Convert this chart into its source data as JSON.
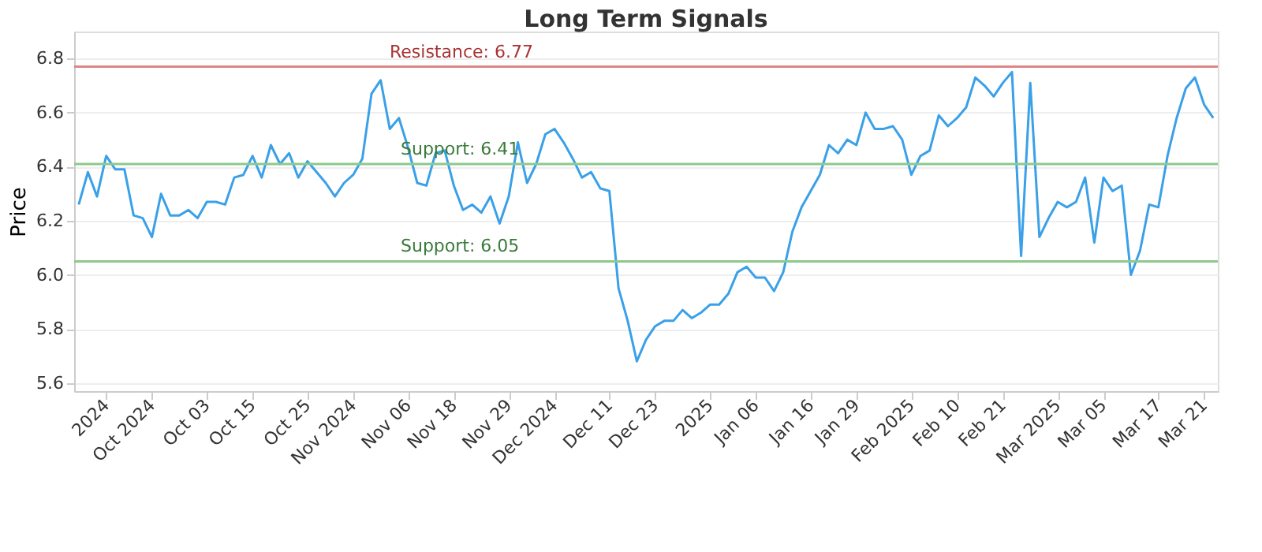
{
  "chart_data": {
    "type": "line",
    "title": "Long Term Signals",
    "ylabel": "Price",
    "categories": [
      null,
      null,
      null,
      "2024",
      null,
      null,
      null,
      null,
      "Oct 2024",
      null,
      null,
      null,
      null,
      null,
      "Oct 03",
      null,
      null,
      null,
      null,
      "Oct 15",
      null,
      null,
      null,
      null,
      null,
      "Oct 25",
      null,
      null,
      null,
      null,
      "Nov 2024",
      null,
      null,
      null,
      null,
      null,
      "Nov 06",
      null,
      null,
      null,
      null,
      "Nov 18",
      null,
      null,
      null,
      null,
      null,
      "Nov 29",
      null,
      null,
      null,
      null,
      "Dec 2024",
      null,
      null,
      null,
      null,
      null,
      "Dec 11",
      null,
      null,
      null,
      null,
      "Dec 23",
      null,
      null,
      null,
      null,
      null,
      "2025",
      null,
      null,
      null,
      null,
      "Jan 06",
      null,
      null,
      null,
      null,
      null,
      "Jan 16",
      null,
      null,
      null,
      null,
      "Jan 29",
      null,
      null,
      null,
      null,
      null,
      "Feb 2025",
      null,
      null,
      null,
      null,
      "Feb 10",
      null,
      null,
      null,
      null,
      "Feb 21",
      null,
      null,
      null,
      null,
      null,
      "Mar 2025",
      null,
      null,
      null,
      null,
      "Mar 05",
      null,
      null,
      null,
      null,
      null,
      "Mar 17",
      null,
      null,
      null,
      null,
      "Mar 21",
      null
    ],
    "series": [
      {
        "color": "#3aa0e8",
        "values": [
          6.26,
          6.38,
          6.29,
          6.44,
          6.39,
          6.39,
          6.22,
          6.21,
          6.14,
          6.3,
          6.22,
          6.22,
          6.24,
          6.21,
          6.27,
          6.27,
          6.26,
          6.36,
          6.37,
          6.44,
          6.36,
          6.48,
          6.41,
          6.45,
          6.36,
          6.42,
          6.38,
          6.34,
          6.29,
          6.34,
          6.37,
          6.43,
          6.67,
          6.72,
          6.54,
          6.58,
          6.47,
          6.34,
          6.33,
          6.45,
          6.46,
          6.33,
          6.24,
          6.26,
          6.23,
          6.29,
          6.19,
          6.29,
          6.49,
          6.34,
          6.41,
          6.52,
          6.54,
          6.49,
          6.43,
          6.36,
          6.38,
          6.32,
          6.31,
          5.95,
          5.83,
          5.68,
          5.76,
          5.81,
          5.83,
          5.83,
          5.87,
          5.84,
          5.86,
          5.89,
          5.89,
          5.93,
          6.01,
          6.03,
          5.99,
          5.99,
          5.94,
          6.01,
          6.16,
          6.25,
          6.31,
          6.37,
          6.48,
          6.45,
          6.5,
          6.48,
          6.6,
          6.54,
          6.54,
          6.55,
          6.5,
          6.37,
          6.44,
          6.46,
          6.59,
          6.55,
          6.58,
          6.62,
          6.73,
          6.7,
          6.66,
          6.71,
          6.75,
          6.07,
          6.71,
          6.14,
          6.21,
          6.27,
          6.25,
          6.27,
          6.36,
          6.12,
          6.36,
          6.31,
          6.33,
          6.0,
          6.09,
          6.26,
          6.25,
          6.44,
          6.58,
          6.69,
          6.73,
          6.63,
          6.58
        ]
      }
    ],
    "ylim": [
      5.57,
      6.9
    ],
    "yticks": [
      {
        "value": 5.6,
        "label": "5.6"
      },
      {
        "value": 5.8,
        "label": "5.8"
      },
      {
        "value": 6,
        "label": "6.0"
      },
      {
        "value": 6.2,
        "label": "6.2"
      },
      {
        "value": 6.4,
        "label": "6.4"
      },
      {
        "value": 6.6,
        "label": "6.6"
      },
      {
        "value": 6.8,
        "label": "6.8"
      }
    ],
    "grid": "y",
    "line_style": "solid",
    "marker": "none",
    "ref_lines": [
      {
        "axis": "y",
        "value": 6.77,
        "label": "Resistance: 6.77",
        "color": "#e08585"
      },
      {
        "axis": "y",
        "value": 6.41,
        "label": "Support: 6.41",
        "color": "#8cc98c"
      },
      {
        "axis": "y",
        "value": 6.05,
        "label": "Support: 6.05",
        "color": "#8cc98c"
      }
    ]
  }
}
